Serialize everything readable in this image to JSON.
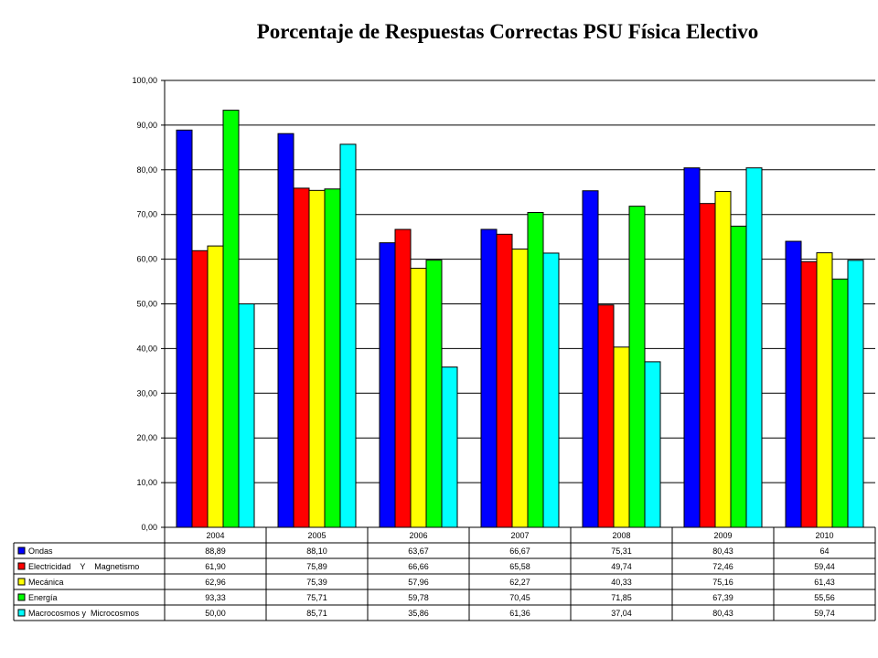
{
  "chart_data": {
    "type": "bar",
    "title": "Porcentaje de Respuestas Correctas PSU Física Electivo",
    "categories": [
      "2004",
      "2005",
      "2006",
      "2007",
      "2008",
      "2009",
      "2010"
    ],
    "ylim": [
      0,
      100
    ],
    "yticks": [
      "0,00",
      "10,00",
      "20,00",
      "30,00",
      "40,00",
      "50,00",
      "60,00",
      "70,00",
      "80,00",
      "90,00",
      "100,00"
    ],
    "grid": true,
    "legend": "data-table-below",
    "series": [
      {
        "name": "Ondas",
        "color": "#0000ff",
        "values": [
          88.89,
          88.1,
          63.67,
          66.67,
          75.31,
          80.43,
          64
        ],
        "labels": [
          "88,89",
          "88,10",
          "63,67",
          "66,67",
          "75,31",
          "80,43",
          "64"
        ]
      },
      {
        "name": "Electricidad    Y    Magnetismo",
        "color": "#ff0000",
        "values": [
          61.9,
          75.89,
          66.66,
          65.58,
          49.74,
          72.46,
          59.44
        ],
        "labels": [
          "61,90",
          "75,89",
          "66,66",
          "65,58",
          "49,74",
          "72,46",
          "59,44"
        ]
      },
      {
        "name": "Mecánica",
        "color": "#ffff00",
        "values": [
          62.96,
          75.39,
          57.96,
          62.27,
          40.33,
          75.16,
          61.43
        ],
        "labels": [
          "62,96",
          "75,39",
          "57,96",
          "62,27",
          "40,33",
          "75,16",
          "61,43"
        ]
      },
      {
        "name": "Energía",
        "color": "#00ff00",
        "values": [
          93.33,
          75.71,
          59.78,
          70.45,
          71.85,
          67.39,
          55.56
        ],
        "labels": [
          "93,33",
          "75,71",
          "59,78",
          "70,45",
          "71,85",
          "67,39",
          "55,56"
        ]
      },
      {
        "name": "Macrocosmos y  Microcosmos",
        "color": "#00ffff",
        "values": [
          50.0,
          85.71,
          35.86,
          61.36,
          37.04,
          80.43,
          59.74
        ],
        "labels": [
          "50,00",
          "85,71",
          "35,86",
          "61,36",
          "37,04",
          "80,43",
          "59,74"
        ]
      }
    ]
  }
}
